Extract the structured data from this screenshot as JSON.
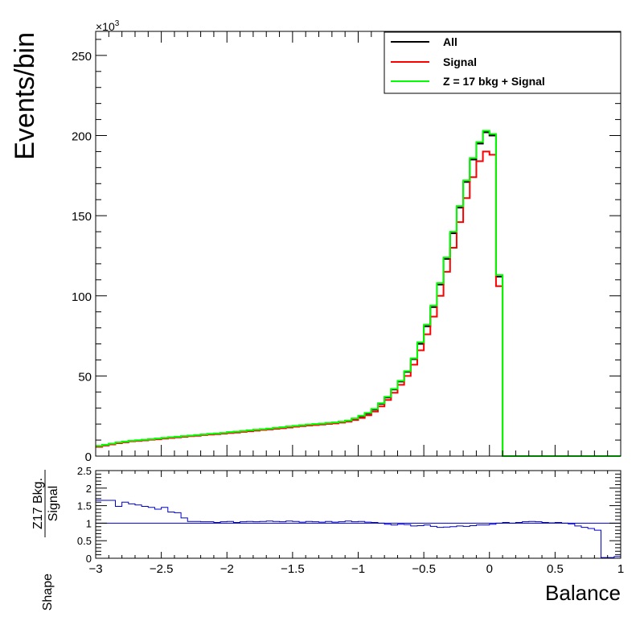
{
  "chart_data": [
    {
      "type": "line",
      "ylabel": "Events/bin",
      "y_multiplier_label": "×10",
      "y_multiplier_exp": "3",
      "xlim": [
        -3,
        1
      ],
      "ylim": [
        0,
        265
      ],
      "y_unit": "thousands of events",
      "x_ticks": [
        "−3",
        "−2.5",
        "−2",
        "−1.5",
        "−1",
        "−0.5",
        "0",
        "0.5",
        "1"
      ],
      "x_tick_values": [
        -3,
        -2.5,
        -2,
        -1.5,
        -1,
        -0.5,
        0,
        0.5,
        1
      ],
      "y_ticks": [
        "0",
        "50",
        "100",
        "150",
        "200",
        "250"
      ],
      "y_tick_values": [
        0,
        50,
        100,
        150,
        200,
        250
      ],
      "legend_position": "top-right",
      "legend": [
        "All",
        "Signal",
        "Z = 17 bkg + Signal"
      ],
      "bins": {
        "start": -3,
        "width": 0.05,
        "count": 80
      },
      "series": [
        {
          "name": "All",
          "color": "#000000",
          "values": [
            6.2,
            7.0,
            7.6,
            8.3,
            8.9,
            9.5,
            9.8,
            10.1,
            10.5,
            10.8,
            11.2,
            11.6,
            12.0,
            12.3,
            12.7,
            13.0,
            13.4,
            13.7,
            14.0,
            14.3,
            14.8,
            15.1,
            15.5,
            15.9,
            16.3,
            16.7,
            17.0,
            17.4,
            17.8,
            18.3,
            18.7,
            19.1,
            19.5,
            19.8,
            20.1,
            20.5,
            20.8,
            21.3,
            22.0,
            23.2,
            24.8,
            26.5,
            29.0,
            32.5,
            36.5,
            41.5,
            46.5,
            52.5,
            60.5,
            70.0,
            81.0,
            93.0,
            107.0,
            123.0,
            139.0,
            155.0,
            171.0,
            185.0,
            195.0,
            202.0,
            200.0,
            112.0,
            0,
            0,
            0,
            0,
            0,
            0,
            0,
            0,
            0,
            0,
            0,
            0,
            0,
            0,
            0,
            0,
            0,
            0
          ]
        },
        {
          "name": "Signal",
          "color": "#ff0000",
          "values": [
            5.8,
            6.6,
            7.3,
            8.0,
            8.6,
            9.2,
            9.5,
            9.8,
            10.2,
            10.5,
            10.9,
            11.3,
            11.7,
            12.0,
            12.4,
            12.7,
            13.1,
            13.4,
            13.7,
            14.0,
            14.4,
            14.7,
            15.1,
            15.5,
            15.9,
            16.3,
            16.6,
            17.0,
            17.4,
            17.8,
            18.3,
            18.7,
            19.1,
            19.4,
            19.7,
            20.1,
            20.4,
            20.9,
            21.5,
            22.5,
            23.8,
            25.5,
            27.8,
            31.0,
            35.0,
            39.5,
            44.5,
            50.0,
            57.0,
            66.0,
            76.0,
            87.0,
            100.0,
            115.0,
            130.0,
            146.0,
            161.0,
            174.0,
            184.0,
            190.0,
            188.0,
            106.0,
            0,
            0,
            0,
            0,
            0,
            0,
            0,
            0,
            0,
            0,
            0,
            0,
            0,
            0,
            0,
            0,
            0,
            0
          ]
        },
        {
          "name": "Z = 17 bkg + Signal",
          "color": "#00ff00",
          "values": [
            6.4,
            7.1,
            7.8,
            8.5,
            9.1,
            9.6,
            9.9,
            10.2,
            10.6,
            11.0,
            11.4,
            11.8,
            12.1,
            12.5,
            12.8,
            13.2,
            13.5,
            13.9,
            14.2,
            14.5,
            15.0,
            15.3,
            15.7,
            16.1,
            16.5,
            16.8,
            17.2,
            17.6,
            18.0,
            18.5,
            18.9,
            19.3,
            19.7,
            20.0,
            20.3,
            20.7,
            21.0,
            21.5,
            22.2,
            23.5,
            25.2,
            27.0,
            29.5,
            33.0,
            37.0,
            42.0,
            47.0,
            53.0,
            61.0,
            71.0,
            82.0,
            94.0,
            108.0,
            124.0,
            140.0,
            156.0,
            172.0,
            186.0,
            196.0,
            203.0,
            201.0,
            113.0,
            0,
            0,
            0,
            0,
            0,
            0,
            0,
            0,
            0,
            0,
            0,
            0,
            0,
            0,
            0,
            0,
            0,
            0
          ]
        }
      ]
    },
    {
      "type": "line",
      "ylabel_prefix": "Shape",
      "ylabel_numerator": "Z17 Bkg.",
      "ylabel_denominator": "Signal",
      "xlabel": "Balance",
      "xlim": [
        -3,
        1
      ],
      "ylim": [
        0,
        2.5
      ],
      "x_ticks": [
        "−3",
        "−2.5",
        "−2",
        "−1.5",
        "−1",
        "−0.5",
        "0",
        "0.5",
        "1"
      ],
      "x_tick_values": [
        -3,
        -2.5,
        -2,
        -1.5,
        -1,
        -0.5,
        0,
        0.5,
        1
      ],
      "y_ticks": [
        "0",
        "0.5",
        "1",
        "1.5",
        "2",
        "2.5"
      ],
      "y_tick_values": [
        0,
        0.5,
        1,
        1.5,
        2,
        2.5
      ],
      "reference_line": 1,
      "bins": {
        "start": -3,
        "width": 0.05,
        "count": 80
      },
      "series": [
        {
          "color": "#0000cc",
          "values": [
            1.65,
            1.65,
            1.65,
            1.48,
            1.6,
            1.55,
            1.52,
            1.48,
            1.45,
            1.4,
            1.45,
            1.32,
            1.3,
            1.15,
            1.05,
            1.05,
            1.04,
            1.04,
            1.02,
            1.04,
            1.05,
            1.02,
            1.04,
            1.05,
            1.04,
            1.05,
            1.06,
            1.05,
            1.04,
            1.06,
            1.05,
            1.03,
            1.05,
            1.04,
            1.03,
            1.05,
            1.03,
            1.04,
            1.06,
            1.04,
            1.05,
            1.03,
            1.02,
            1.0,
            0.97,
            0.95,
            0.97,
            0.96,
            0.92,
            0.93,
            0.95,
            0.91,
            0.88,
            0.89,
            0.9,
            0.92,
            0.91,
            0.93,
            0.95,
            0.95,
            0.97,
            1.0,
            1.02,
            1.0,
            1.02,
            1.04,
            1.05,
            1.04,
            1.02,
            1.01,
            1.02,
            1.0,
            0.98,
            0.92,
            0.88,
            0.85,
            0.8,
            0.02,
            0.02,
            0.05
          ]
        }
      ]
    }
  ]
}
